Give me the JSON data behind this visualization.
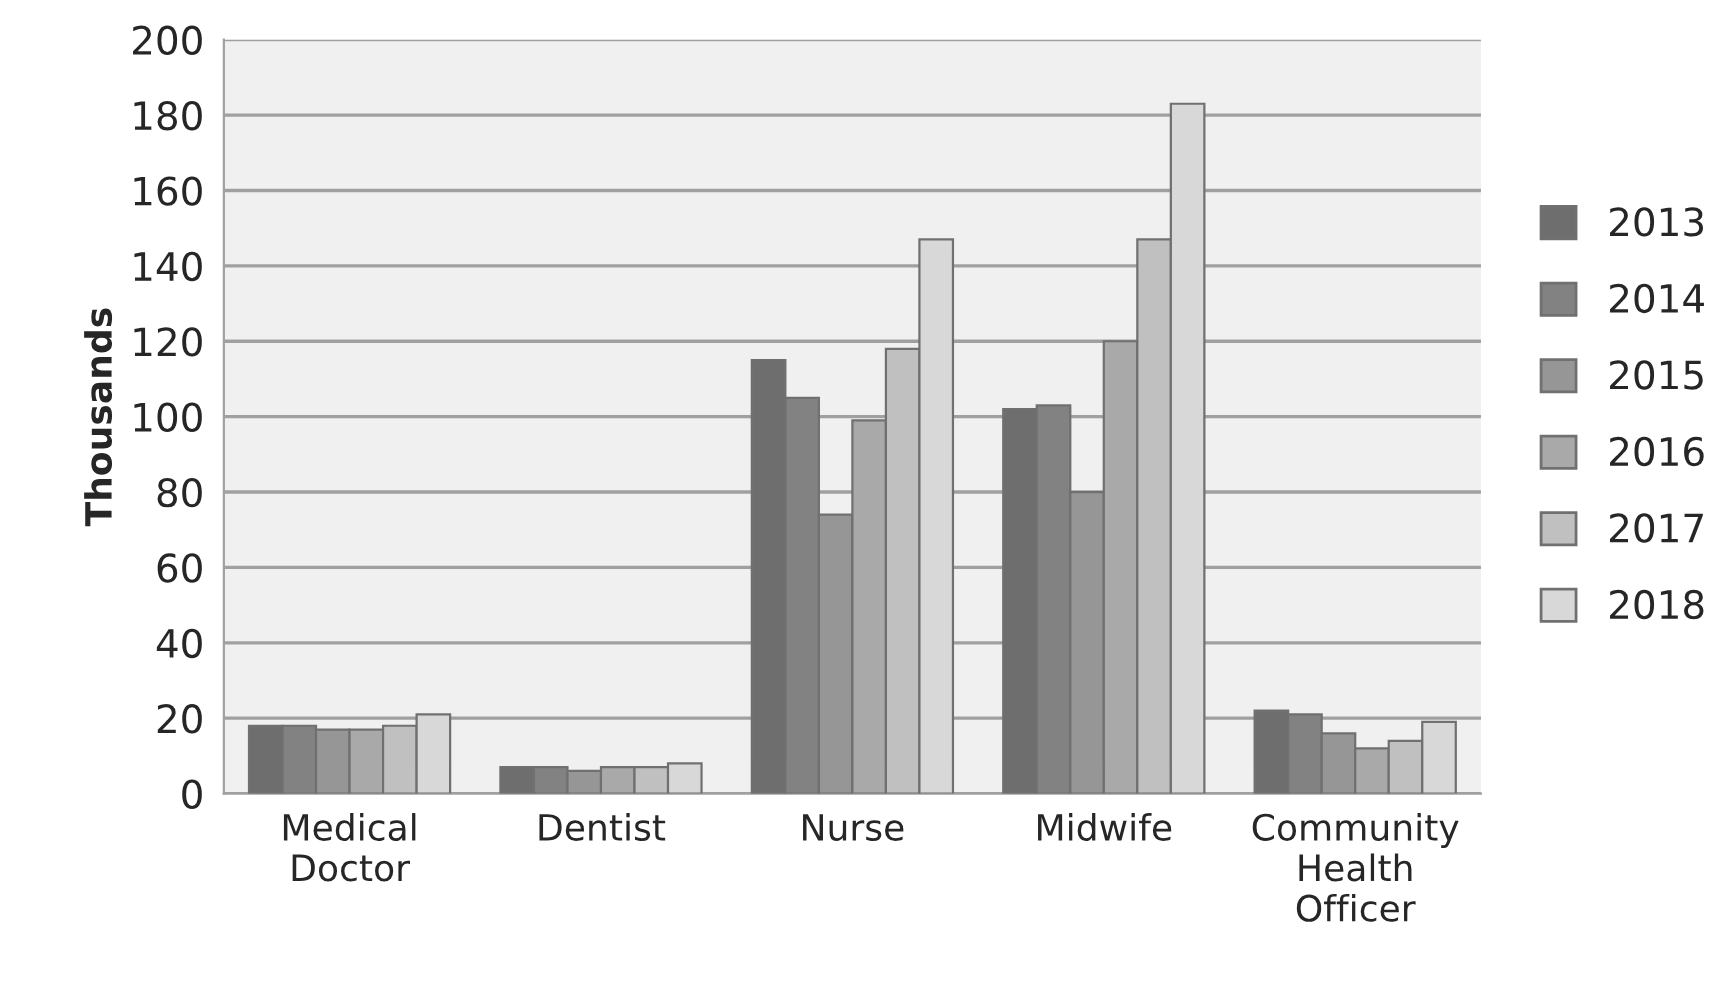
{
  "chart_data": {
    "type": "bar",
    "ylabel": "Thousands",
    "categories": [
      "Medical\nDoctor",
      "Dentist",
      "Nurse",
      "Midwife",
      "Community\nHealth\nOfficer"
    ],
    "series": [
      {
        "name": "2013",
        "color": "#6e6e6e",
        "values": [
          18,
          7,
          115,
          102,
          22
        ]
      },
      {
        "name": "2014",
        "color": "#828282",
        "values": [
          18,
          7,
          105,
          103,
          21
        ]
      },
      {
        "name": "2015",
        "color": "#969696",
        "values": [
          17,
          6,
          74,
          80,
          16
        ]
      },
      {
        "name": "2016",
        "color": "#a9a9a9",
        "values": [
          17,
          7,
          99,
          120,
          12
        ]
      },
      {
        "name": "2017",
        "color": "#c0c0c0",
        "values": [
          18,
          7,
          118,
          147,
          14
        ]
      },
      {
        "name": "2018",
        "color": "#d8d8d8",
        "values": [
          21,
          8,
          147,
          183,
          19
        ]
      }
    ],
    "ylim": [
      0,
      200
    ],
    "yticks": [
      0,
      20,
      40,
      60,
      80,
      100,
      120,
      140,
      160,
      180,
      200
    ],
    "grid": "y",
    "legend": "right"
  }
}
